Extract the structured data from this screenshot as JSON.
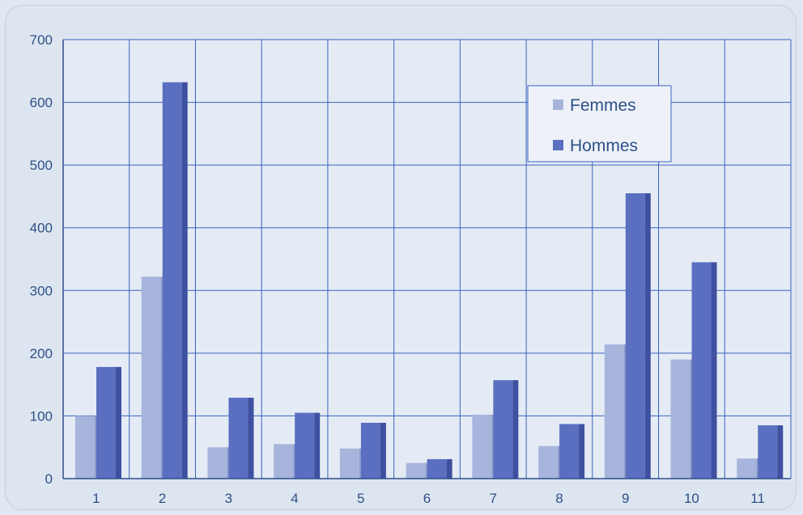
{
  "chart_data": {
    "type": "bar",
    "title": "",
    "xlabel": "",
    "ylabel": "",
    "categories": [
      "1",
      "2",
      "3",
      "4",
      "5",
      "6",
      "7",
      "8",
      "9",
      "10",
      "11"
    ],
    "series": [
      {
        "name": "Femmes",
        "values": [
          100,
          322,
          50,
          55,
          48,
          25,
          102,
          52,
          214,
          190,
          32
        ]
      },
      {
        "name": "Hommes",
        "values": [
          178,
          632,
          129,
          105,
          89,
          31,
          157,
          87,
          455,
          345,
          85
        ]
      }
    ],
    "ylim": [
      0,
      700
    ],
    "yticks": [
      0,
      100,
      200,
      300,
      400,
      500,
      600,
      700
    ],
    "grid": true,
    "legend_position": "top-right",
    "colors": {
      "Femmes": "#a7b4dc",
      "Hommes": "#5a6fc0",
      "grid": "#3a62c0",
      "plot_background": "#e4ebf4",
      "text": "#2e4f86"
    }
  }
}
